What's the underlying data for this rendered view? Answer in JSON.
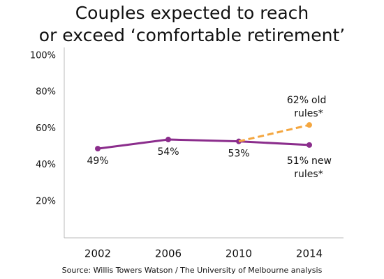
{
  "chart_data": {
    "type": "line",
    "title": "Couples expected to reach or exceed ‘comfortable retirement’",
    "categories": [
      "2002",
      "2006",
      "2010",
      "2014"
    ],
    "series": [
      {
        "name": "new rules*",
        "color": "#8b2d8c",
        "values": [
          49,
          54,
          53,
          51
        ],
        "value_labels": [
          "49%",
          "54%",
          "53%",
          "51%"
        ]
      },
      {
        "name": "old rules*",
        "color": "#f4a63f",
        "dashed": true,
        "values": [
          null,
          null,
          53,
          62
        ],
        "value_labels": [
          null,
          null,
          null,
          "62%"
        ]
      }
    ],
    "ylim": [
      0,
      100
    ],
    "yticks": [
      {
        "value": 20,
        "label": "20%"
      },
      {
        "value": 40,
        "label": "40%"
      },
      {
        "value": 60,
        "label": "60%"
      },
      {
        "value": 80,
        "label": "80%"
      },
      {
        "value": 100,
        "label": "100%"
      }
    ],
    "source": "Source: Willis Towers Watson / The University of Melbourne analysis"
  }
}
